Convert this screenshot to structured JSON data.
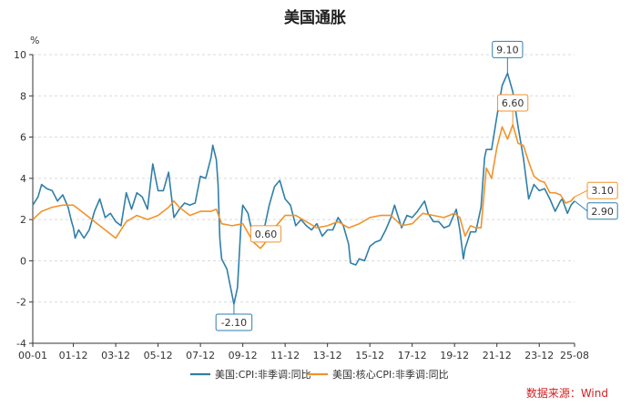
{
  "chart_data": {
    "type": "line",
    "title": "美国通胀",
    "ylabel": "%",
    "ylim": [
      -4,
      10
    ],
    "yticks": [
      -4,
      -2,
      0,
      2,
      4,
      6,
      8,
      10
    ],
    "xticks": [
      "00-01",
      "01-12",
      "03-12",
      "05-12",
      "07-12",
      "09-12",
      "11-12",
      "13-12",
      "15-12",
      "17-12",
      "19-12",
      "21-12",
      "23-12",
      "25-08"
    ],
    "grid": true,
    "legend_position": "bottom",
    "source": "数据来源：Wind",
    "series": [
      {
        "name": "美国:CPI:非季调:同比",
        "color": "#2f7fa9",
        "points": [
          [
            "2000-01",
            2.7
          ],
          [
            "2000-04",
            3.1
          ],
          [
            "2000-06",
            3.7
          ],
          [
            "2000-09",
            3.5
          ],
          [
            "2000-12",
            3.4
          ],
          [
            "2001-03",
            2.9
          ],
          [
            "2001-06",
            3.2
          ],
          [
            "2001-09",
            2.6
          ],
          [
            "2001-11",
            1.9
          ],
          [
            "2001-12",
            1.6
          ],
          [
            "2002-01",
            1.1
          ],
          [
            "2002-03",
            1.5
          ],
          [
            "2002-06",
            1.1
          ],
          [
            "2002-09",
            1.5
          ],
          [
            "2002-12",
            2.4
          ],
          [
            "2003-03",
            3.0
          ],
          [
            "2003-06",
            2.1
          ],
          [
            "2003-09",
            2.3
          ],
          [
            "2003-12",
            1.9
          ],
          [
            "2004-03",
            1.7
          ],
          [
            "2004-06",
            3.3
          ],
          [
            "2004-09",
            2.5
          ],
          [
            "2004-12",
            3.3
          ],
          [
            "2005-03",
            3.1
          ],
          [
            "2005-06",
            2.5
          ],
          [
            "2005-09",
            4.7
          ],
          [
            "2005-12",
            3.4
          ],
          [
            "2006-03",
            3.4
          ],
          [
            "2006-06",
            4.3
          ],
          [
            "2006-09",
            2.1
          ],
          [
            "2006-12",
            2.5
          ],
          [
            "2007-03",
            2.8
          ],
          [
            "2007-06",
            2.7
          ],
          [
            "2007-09",
            2.8
          ],
          [
            "2007-12",
            4.1
          ],
          [
            "2008-03",
            4.0
          ],
          [
            "2008-06",
            5.0
          ],
          [
            "2008-07",
            5.6
          ],
          [
            "2008-09",
            4.9
          ],
          [
            "2008-10",
            3.7
          ],
          [
            "2008-11",
            1.1
          ],
          [
            "2008-12",
            0.1
          ],
          [
            "2009-03",
            -0.4
          ],
          [
            "2009-07",
            -2.1
          ],
          [
            "2009-09",
            -1.3
          ],
          [
            "2009-11",
            1.8
          ],
          [
            "2009-12",
            2.7
          ],
          [
            "2010-03",
            2.3
          ],
          [
            "2010-06",
            1.1
          ],
          [
            "2010-09",
            1.1
          ],
          [
            "2010-12",
            1.5
          ],
          [
            "2011-03",
            2.7
          ],
          [
            "2011-06",
            3.6
          ],
          [
            "2011-09",
            3.9
          ],
          [
            "2011-12",
            3.0
          ],
          [
            "2012-03",
            2.7
          ],
          [
            "2012-06",
            1.7
          ],
          [
            "2012-09",
            2.0
          ],
          [
            "2012-12",
            1.7
          ],
          [
            "2013-03",
            1.5
          ],
          [
            "2013-06",
            1.8
          ],
          [
            "2013-09",
            1.2
          ],
          [
            "2013-12",
            1.5
          ],
          [
            "2014-03",
            1.5
          ],
          [
            "2014-06",
            2.1
          ],
          [
            "2014-09",
            1.7
          ],
          [
            "2014-12",
            0.8
          ],
          [
            "2015-01",
            -0.1
          ],
          [
            "2015-04",
            -0.2
          ],
          [
            "2015-06",
            0.1
          ],
          [
            "2015-09",
            0.0
          ],
          [
            "2015-12",
            0.7
          ],
          [
            "2016-03",
            0.9
          ],
          [
            "2016-06",
            1.0
          ],
          [
            "2016-09",
            1.5
          ],
          [
            "2016-12",
            2.1
          ],
          [
            "2017-02",
            2.7
          ],
          [
            "2017-06",
            1.6
          ],
          [
            "2017-09",
            2.2
          ],
          [
            "2017-12",
            2.1
          ],
          [
            "2018-03",
            2.4
          ],
          [
            "2018-07",
            2.9
          ],
          [
            "2018-09",
            2.3
          ],
          [
            "2018-12",
            1.9
          ],
          [
            "2019-03",
            1.9
          ],
          [
            "2019-06",
            1.6
          ],
          [
            "2019-09",
            1.7
          ],
          [
            "2019-12",
            2.3
          ],
          [
            "2020-01",
            2.5
          ],
          [
            "2020-03",
            1.5
          ],
          [
            "2020-05",
            0.1
          ],
          [
            "2020-06",
            0.6
          ],
          [
            "2020-09",
            1.4
          ],
          [
            "2020-12",
            1.4
          ],
          [
            "2021-03",
            2.6
          ],
          [
            "2021-05",
            5.0
          ],
          [
            "2021-06",
            5.4
          ],
          [
            "2021-09",
            5.4
          ],
          [
            "2021-12",
            7.0
          ],
          [
            "2022-03",
            8.5
          ],
          [
            "2022-06",
            9.1
          ],
          [
            "2022-09",
            8.2
          ],
          [
            "2022-12",
            6.5
          ],
          [
            "2023-03",
            5.0
          ],
          [
            "2023-06",
            3.0
          ],
          [
            "2023-09",
            3.7
          ],
          [
            "2023-12",
            3.4
          ],
          [
            "2024-03",
            3.5
          ],
          [
            "2024-06",
            3.0
          ],
          [
            "2024-09",
            2.4
          ],
          [
            "2024-12",
            2.9
          ],
          [
            "2025-01",
            3.0
          ],
          [
            "2025-04",
            2.3
          ],
          [
            "2025-06",
            2.7
          ],
          [
            "2025-08",
            2.9
          ]
        ]
      },
      {
        "name": "美国:核心CPI:非季调:同比",
        "color": "#f0932b",
        "points": [
          [
            "2000-01",
            2.0
          ],
          [
            "2000-06",
            2.4
          ],
          [
            "2000-12",
            2.6
          ],
          [
            "2001-06",
            2.7
          ],
          [
            "2001-12",
            2.7
          ],
          [
            "2002-06",
            2.3
          ],
          [
            "2002-12",
            1.9
          ],
          [
            "2003-06",
            1.5
          ],
          [
            "2003-12",
            1.1
          ],
          [
            "2004-06",
            1.9
          ],
          [
            "2004-12",
            2.2
          ],
          [
            "2005-06",
            2.0
          ],
          [
            "2005-12",
            2.2
          ],
          [
            "2006-06",
            2.6
          ],
          [
            "2006-09",
            2.9
          ],
          [
            "2006-12",
            2.6
          ],
          [
            "2007-06",
            2.2
          ],
          [
            "2007-12",
            2.4
          ],
          [
            "2008-06",
            2.4
          ],
          [
            "2008-09",
            2.5
          ],
          [
            "2008-12",
            1.8
          ],
          [
            "2009-06",
            1.7
          ],
          [
            "2009-12",
            1.8
          ],
          [
            "2010-06",
            0.9
          ],
          [
            "2010-10",
            0.6
          ],
          [
            "2010-12",
            0.8
          ],
          [
            "2011-06",
            1.6
          ],
          [
            "2011-12",
            2.2
          ],
          [
            "2012-06",
            2.2
          ],
          [
            "2012-12",
            1.9
          ],
          [
            "2013-06",
            1.6
          ],
          [
            "2013-12",
            1.7
          ],
          [
            "2014-06",
            1.9
          ],
          [
            "2014-12",
            1.6
          ],
          [
            "2015-06",
            1.8
          ],
          [
            "2015-12",
            2.1
          ],
          [
            "2016-06",
            2.2
          ],
          [
            "2016-12",
            2.2
          ],
          [
            "2017-06",
            1.7
          ],
          [
            "2017-12",
            1.8
          ],
          [
            "2018-06",
            2.3
          ],
          [
            "2018-12",
            2.2
          ],
          [
            "2019-06",
            2.1
          ],
          [
            "2019-12",
            2.3
          ],
          [
            "2020-03",
            2.1
          ],
          [
            "2020-06",
            1.2
          ],
          [
            "2020-09",
            1.7
          ],
          [
            "2020-12",
            1.6
          ],
          [
            "2021-03",
            1.6
          ],
          [
            "2021-06",
            4.5
          ],
          [
            "2021-09",
            4.0
          ],
          [
            "2021-12",
            5.5
          ],
          [
            "2022-03",
            6.5
          ],
          [
            "2022-06",
            5.9
          ],
          [
            "2022-09",
            6.6
          ],
          [
            "2022-12",
            5.7
          ],
          [
            "2023-03",
            5.6
          ],
          [
            "2023-06",
            4.8
          ],
          [
            "2023-09",
            4.1
          ],
          [
            "2023-12",
            3.9
          ],
          [
            "2024-03",
            3.8
          ],
          [
            "2024-06",
            3.3
          ],
          [
            "2024-09",
            3.3
          ],
          [
            "2024-12",
            3.2
          ],
          [
            "2025-03",
            2.8
          ],
          [
            "2025-06",
            2.9
          ],
          [
            "2025-08",
            3.1
          ]
        ]
      }
    ],
    "annotations": [
      {
        "series": 0,
        "date": "2022-06",
        "label": "9.10"
      },
      {
        "series": 1,
        "date": "2022-09",
        "label": "6.60"
      },
      {
        "series": 0,
        "date": "2009-07",
        "label": "-2.10"
      },
      {
        "series": 1,
        "date": "2010-10",
        "label": "0.60"
      },
      {
        "series": 1,
        "date": "2025-08",
        "label": "3.10"
      },
      {
        "series": 0,
        "date": "2025-08",
        "label": "2.90"
      }
    ]
  }
}
